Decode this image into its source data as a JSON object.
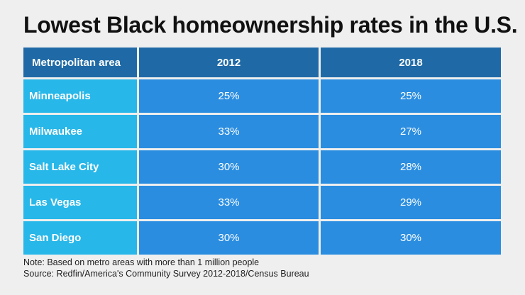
{
  "title": "Lowest Black homeownership rates in the U.S.",
  "chart_data": {
    "type": "table",
    "title": "Lowest Black homeownership rates in the U.S.",
    "columns": [
      "Metropolitan area",
      "2012",
      "2018"
    ],
    "rows": [
      {
        "area": "Minneapolis",
        "v2012": "25%",
        "v2018": "25%"
      },
      {
        "area": "Milwaukee",
        "v2012": "33%",
        "v2018": "27%"
      },
      {
        "area": "Salt Lake City",
        "v2012": "30%",
        "v2018": "28%"
      },
      {
        "area": "Las Vegas",
        "v2012": "33%",
        "v2018": "29%"
      },
      {
        "area": "San Diego",
        "v2012": "30%",
        "v2018": "30%"
      }
    ],
    "colors": {
      "header": "#1f6aa6",
      "row_label": "#27b7e9",
      "cell": "#2a8de0"
    }
  },
  "notes": {
    "note": "Note: Based on metro areas with more than 1 million people",
    "source": "Source: Redfin/America's Community Survey 2012-2018/Census Bureau"
  }
}
